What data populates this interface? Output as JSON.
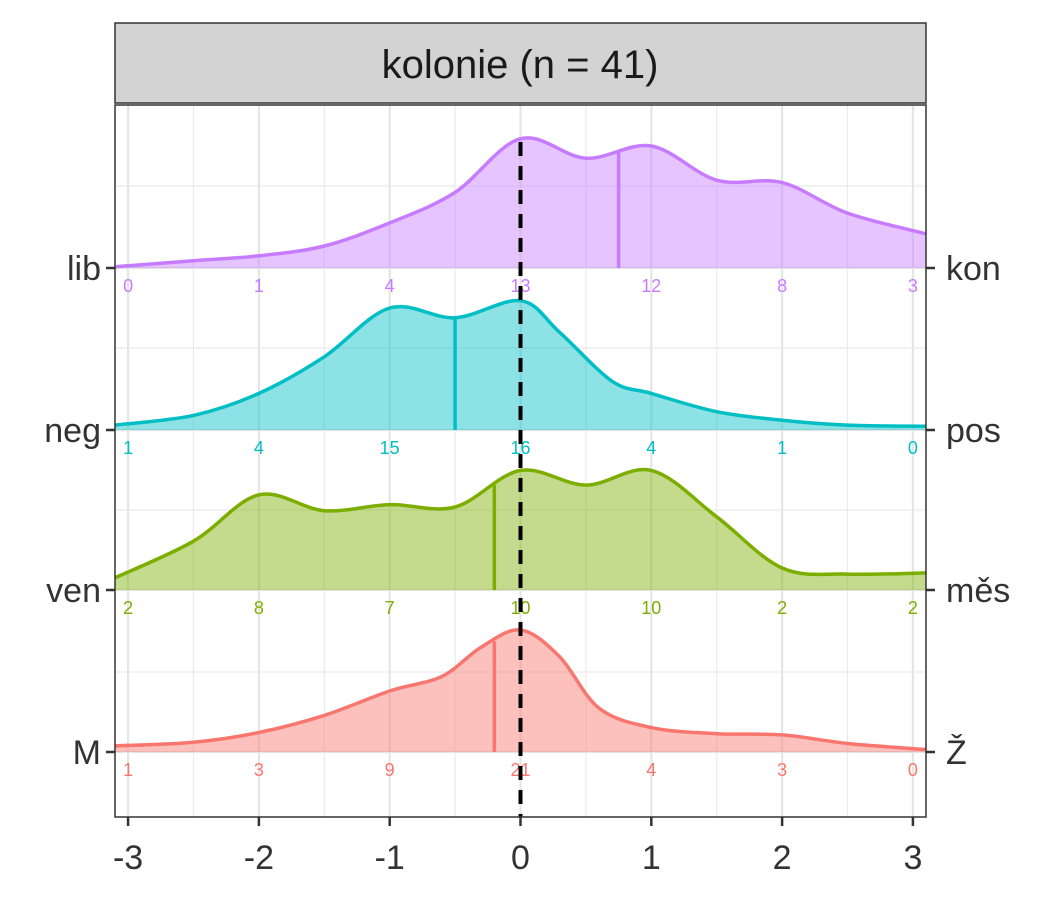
{
  "chart_data": {
    "type": "area",
    "facet_title": "kolonie (n = 41)",
    "x_ticks": [
      "-3",
      "-2",
      "-1",
      "0",
      "1",
      "2",
      "3"
    ],
    "xlim": [
      -3.1,
      3.1
    ],
    "reference_line_x": 0,
    "grid": true,
    "series": [
      {
        "left_label": "M",
        "right_label": "Ž",
        "color": "#F8766D",
        "mean": -0.2,
        "counts": [
          "1",
          "3",
          "9",
          "21",
          "4",
          "3",
          "0"
        ],
        "density_x": [
          -3.1,
          -2.5,
          -2.0,
          -1.5,
          -1.0,
          -0.6,
          -0.3,
          0.0,
          0.3,
          0.6,
          1.0,
          1.5,
          2.0,
          2.5,
          3.1
        ],
        "density_y": [
          0.05,
          0.08,
          0.16,
          0.3,
          0.5,
          0.62,
          0.86,
          1.0,
          0.78,
          0.36,
          0.2,
          0.15,
          0.14,
          0.07,
          0.02
        ]
      },
      {
        "left_label": "ven",
        "right_label": "měs",
        "color": "#7CAE00",
        "mean": -0.2,
        "counts": [
          "2",
          "8",
          "7",
          "10",
          "10",
          "2",
          "2"
        ],
        "density_x": [
          -3.1,
          -2.5,
          -2.0,
          -1.5,
          -1.0,
          -0.5,
          0.0,
          0.5,
          1.0,
          1.5,
          2.0,
          2.5,
          3.1
        ],
        "density_y": [
          0.1,
          0.4,
          0.78,
          0.65,
          0.7,
          0.68,
          0.98,
          0.86,
          0.98,
          0.6,
          0.18,
          0.13,
          0.14
        ]
      },
      {
        "left_label": "neg",
        "right_label": "pos",
        "color": "#00BFC4",
        "mean": -0.5,
        "counts": [
          "1",
          "4",
          "15",
          "16",
          "4",
          "1",
          "0"
        ],
        "density_x": [
          -3.1,
          -2.5,
          -2.0,
          -1.5,
          -1.0,
          -0.5,
          0.0,
          0.3,
          0.7,
          1.0,
          1.5,
          2.0,
          2.5,
          3.1
        ],
        "density_y": [
          0.04,
          0.12,
          0.3,
          0.6,
          1.0,
          0.92,
          1.06,
          0.8,
          0.4,
          0.3,
          0.15,
          0.08,
          0.04,
          0.03
        ]
      },
      {
        "left_label": "lib",
        "right_label": "kon",
        "color": "#C77CFF",
        "mean": 0.75,
        "counts": [
          "0",
          "1",
          "4",
          "13",
          "12",
          "8",
          "3"
        ],
        "density_x": [
          -3.1,
          -2.5,
          -2.0,
          -1.5,
          -1.0,
          -0.5,
          0.0,
          0.5,
          1.0,
          1.5,
          2.0,
          2.5,
          3.1
        ],
        "density_y": [
          0.01,
          0.06,
          0.1,
          0.18,
          0.37,
          0.62,
          1.06,
          0.9,
          1.0,
          0.72,
          0.7,
          0.45,
          0.28
        ]
      }
    ]
  }
}
